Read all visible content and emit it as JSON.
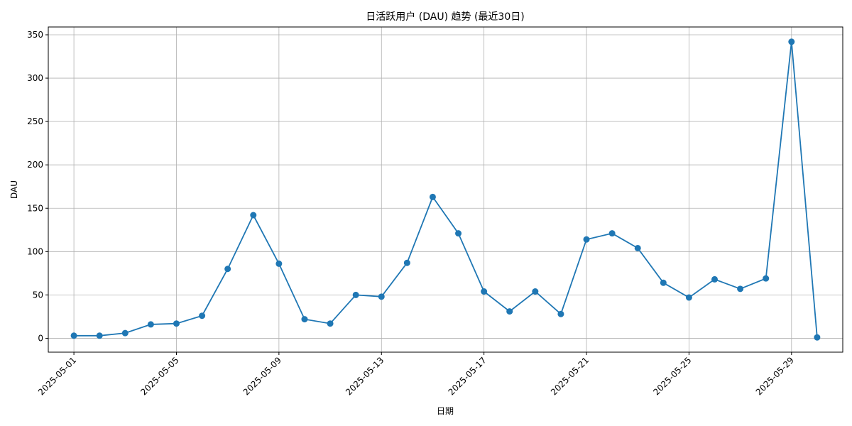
{
  "chart_data": {
    "type": "line",
    "title": "日活跃用户 (DAU) 趋势 (最近30日)",
    "xlabel": "日期",
    "ylabel": "DAU",
    "x": [
      "2025-05-01",
      "2025-05-02",
      "2025-05-03",
      "2025-05-04",
      "2025-05-05",
      "2025-05-06",
      "2025-05-07",
      "2025-05-08",
      "2025-05-09",
      "2025-05-10",
      "2025-05-11",
      "2025-05-12",
      "2025-05-13",
      "2025-05-14",
      "2025-05-15",
      "2025-05-16",
      "2025-05-17",
      "2025-05-18",
      "2025-05-19",
      "2025-05-20",
      "2025-05-21",
      "2025-05-22",
      "2025-05-23",
      "2025-05-24",
      "2025-05-25",
      "2025-05-26",
      "2025-05-27",
      "2025-05-28",
      "2025-05-29",
      "2025-05-30"
    ],
    "series": [
      {
        "values": [
          3,
          3,
          6,
          16,
          17,
          26,
          80,
          142,
          86,
          22,
          17,
          50,
          48,
          87,
          163,
          121,
          54,
          31,
          54,
          28,
          114,
          121,
          104,
          64,
          47,
          68,
          57,
          69,
          342,
          1
        ],
        "color": "#1f77b4",
        "marker": "circle"
      }
    ],
    "x_ticks": [
      "2025-05-01",
      "2025-05-05",
      "2025-05-09",
      "2025-05-13",
      "2025-05-17",
      "2025-05-21",
      "2025-05-25",
      "2025-05-29"
    ],
    "y_ticks": [
      0,
      50,
      100,
      150,
      200,
      250,
      300,
      350
    ],
    "xlim": [
      "2025-04-30",
      "2025-05-31"
    ],
    "ylim": [
      -16,
      359
    ],
    "grid": true,
    "legend": false,
    "grid_color": "#b0b0b0",
    "axis_color": "#000000"
  }
}
